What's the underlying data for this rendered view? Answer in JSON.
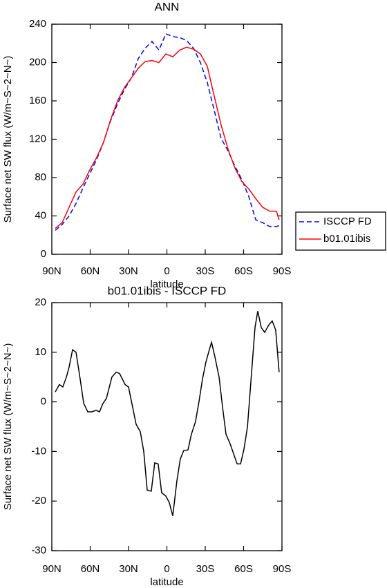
{
  "chart_data": [
    {
      "type": "line",
      "title": "ANN",
      "xlabel": "latitude",
      "ylabel": "Surface net SW flux (W/m~S~2~N~)",
      "x": [
        87.3,
        81.9,
        76.5,
        71.1,
        65.7,
        60.3,
        54.9,
        49.5,
        44.1,
        38.6,
        33.2,
        27.8,
        22.4,
        17,
        11.6,
        6.2,
        0.8,
        -4.6,
        -10,
        -15.4,
        -20.8,
        -26.2,
        -31.6,
        -37,
        -42.4,
        -47.8,
        -53.2,
        -58.6,
        -64.1,
        -69.5,
        -74.9,
        -80.3,
        -85.7,
        -87.8
      ],
      "xlim": [
        90,
        -90
      ],
      "xticks": [
        {
          "value": 90,
          "label": "90N"
        },
        {
          "value": 60,
          "label": "60N"
        },
        {
          "value": 30,
          "label": "30N"
        },
        0,
        {
          "value": -30,
          "label": "30S"
        },
        {
          "value": -60,
          "label": "60S"
        },
        {
          "value": -90,
          "label": "90S"
        }
      ],
      "ylim": [
        0,
        240
      ],
      "yticks": [
        0,
        40,
        80,
        120,
        160,
        200,
        240
      ],
      "legend": "right",
      "series": [
        {
          "name": "ISCCP FD",
          "color": "#0000ff",
          "linestyle": "dashed",
          "values": [
            25,
            31,
            40,
            53,
            69,
            84,
            99,
            117,
            139,
            157,
            172,
            184,
            204,
            215,
            222,
            213,
            230,
            227,
            226,
            223,
            215,
            200,
            179,
            150,
            121,
            108,
            92,
            78,
            60,
            36,
            33,
            29,
            29,
            30
          ]
        },
        {
          "name": "b01.01ibis",
          "color": "#ff0000",
          "linestyle": "solid",
          "values": [
            27,
            33,
            49,
            65,
            73,
            88,
            101,
            117,
            140,
            160,
            174,
            184,
            194,
            201,
            202,
            200,
            209,
            206,
            213,
            216,
            214,
            209,
            196,
            165,
            135,
            110,
            90,
            76,
            68,
            58,
            49,
            45,
            45,
            36
          ]
        }
      ]
    },
    {
      "type": "line",
      "title": "b01.01ibis - ISCCP FD",
      "xlabel": "latitude",
      "ylabel": "Surface net SW flux (W/m~S~2~N~)",
      "x": [
        87.3,
        84.1,
        81.4,
        78.6,
        76.5,
        73.8,
        71.1,
        67.8,
        65.1,
        61.9,
        58.6,
        55.4,
        52.7,
        50,
        47.3,
        43,
        39.7,
        37,
        32.7,
        30,
        24.1,
        20.8,
        18.1,
        15.4,
        12.2,
        9.5,
        6.8,
        4.1,
        0.8,
        -1.9,
        -4.6,
        -7.8,
        -10.5,
        -13.2,
        -16.5,
        -19.2,
        -22.4,
        -25.1,
        -27.8,
        -30.5,
        -33.2,
        -34.9,
        -37.6,
        -40.8,
        -43.5,
        -46.2,
        -49.5,
        -52.2,
        -54.9,
        -57.6,
        -60.3,
        -63,
        -65.7,
        -68.9,
        -71.1,
        -73.8,
        -76.5,
        -79.7,
        -82.4,
        -85.1,
        -87.8
      ],
      "xlim": [
        90,
        -90
      ],
      "xticks": [
        {
          "value": 90,
          "label": "90N"
        },
        {
          "value": 60,
          "label": "60N"
        },
        {
          "value": 30,
          "label": "30N"
        },
        0,
        {
          "value": -30,
          "label": "30S"
        },
        {
          "value": -60,
          "label": "60S"
        },
        {
          "value": -90,
          "label": "90S"
        }
      ],
      "ylim": [
        -30,
        20
      ],
      "yticks": [
        -30,
        -20,
        -10,
        0,
        10,
        20
      ],
      "series": [
        {
          "color": "#000000",
          "linestyle": "solid",
          "values": [
            2,
            3.5,
            3,
            5,
            7,
            10.5,
            10,
            4.5,
            -0.3,
            -2,
            -2,
            -1.7,
            -2,
            -0.3,
            0.7,
            5,
            6,
            5.7,
            3.5,
            3,
            -4.5,
            -6,
            -10,
            -17.8,
            -18,
            -12.3,
            -12.5,
            -18.3,
            -19,
            -20.3,
            -23,
            -16,
            -11.5,
            -9.8,
            -9.7,
            -6.5,
            -4,
            0,
            4.5,
            8,
            10.5,
            12,
            9,
            5,
            -1,
            -6.5,
            -8.5,
            -10.5,
            -12.5,
            -12.5,
            -9.5,
            -5,
            4,
            15,
            18.3,
            15,
            14,
            15.5,
            16.3,
            14.5,
            6
          ]
        }
      ]
    }
  ]
}
